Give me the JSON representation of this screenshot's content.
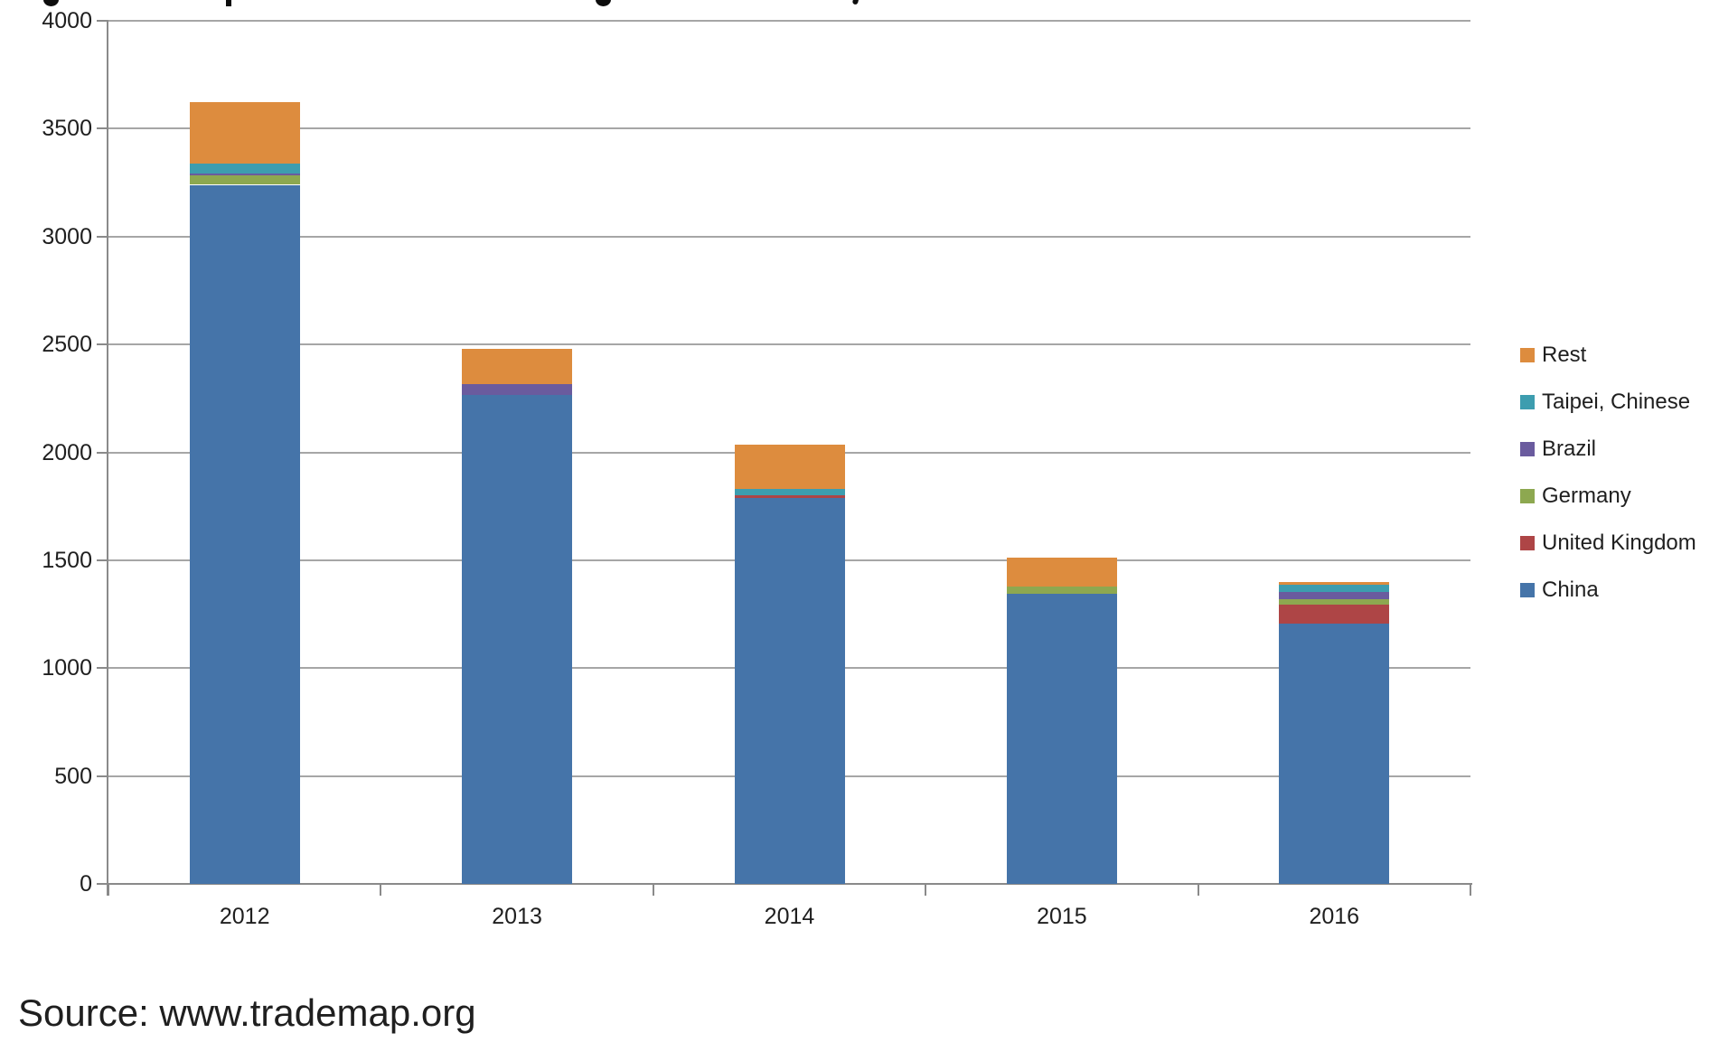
{
  "source_note": "Source: www.trademap.org",
  "chart_data": {
    "type": "bar",
    "stacked": true,
    "categories": [
      "2012",
      "2013",
      "2014",
      "2015",
      "2016"
    ],
    "series": [
      {
        "name": "Rest",
        "color": "#DD8C3E",
        "values": [
          283,
          165,
          206,
          134,
          16
        ]
      },
      {
        "name": "Taipei, Chinese",
        "color": "#3D9DAF",
        "values": [
          46,
          0,
          28,
          0,
          33
        ]
      },
      {
        "name": "Brazil",
        "color": "#6A5B9E",
        "values": [
          12,
          50,
          0,
          0,
          33
        ]
      },
      {
        "name": "Germany",
        "color": "#8DA850",
        "values": [
          42,
          0,
          0,
          33,
          26
        ]
      },
      {
        "name": "United Kingdom",
        "color": "#AE4546",
        "values": [
          0,
          0,
          12,
          0,
          88
        ]
      },
      {
        "name": "China",
        "color": "#4574A9",
        "values": [
          3240,
          2265,
          1790,
          1345,
          1205
        ]
      }
    ],
    "totals": [
      3623,
      2480,
      2036,
      1512,
      1401
    ],
    "ylim": [
      0,
      4000
    ],
    "yticks": [
      0,
      500,
      1000,
      1500,
      2000,
      2500,
      3000,
      3500,
      4000
    ],
    "xlabel": "",
    "ylabel": "",
    "grid": true,
    "legend_position": "right",
    "grid_color": "#A6A6A6",
    "axis_color": "#8A8A8A",
    "text_color": "#1F1F1F"
  }
}
